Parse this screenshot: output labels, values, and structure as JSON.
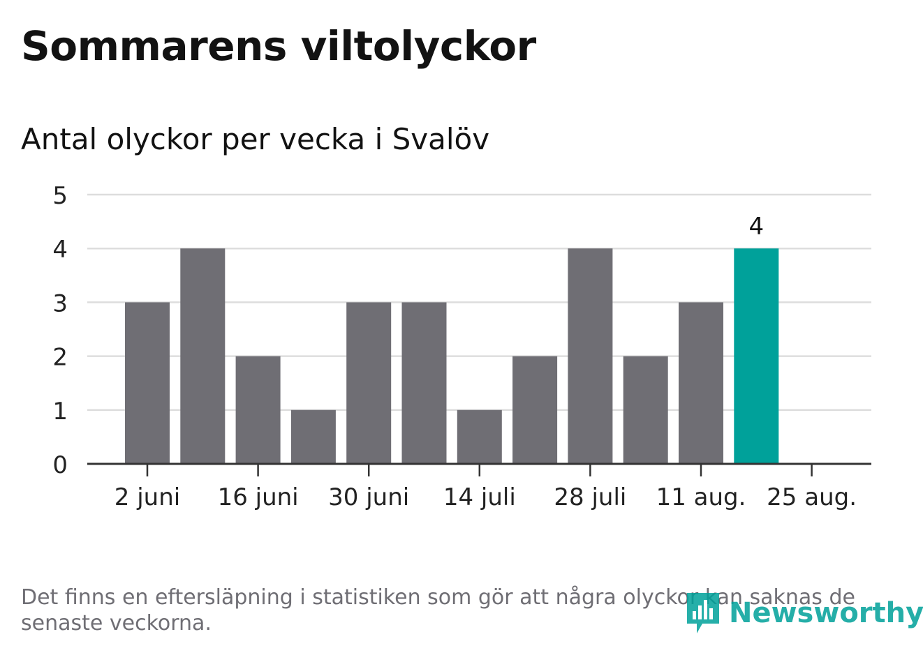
{
  "chart_data": {
    "type": "bar",
    "title": "Sommarens viltolyckor",
    "subtitle": "Antal olyckor per vecka i Svalöv",
    "x": [
      "2024-05-27",
      "2024-06-03",
      "2024-06-10",
      "2024-06-17",
      "2024-06-24",
      "2024-07-01",
      "2024-07-08",
      "2024-07-15",
      "2024-07-22",
      "2024-07-29",
      "2024-08-05",
      "2024-08-12",
      "2024-08-19"
    ],
    "values": [
      0,
      3,
      4,
      2,
      1,
      3,
      3,
      1,
      2,
      4,
      2,
      3,
      4
    ],
    "x_ticks": [
      {
        "at": "2024-06-03",
        "label": "2 juni"
      },
      {
        "at": "2024-06-17",
        "label": "16 juni"
      },
      {
        "at": "2024-07-01",
        "label": "30 juni"
      },
      {
        "at": "2024-07-15",
        "label": "14 juli"
      },
      {
        "at": "2024-07-29",
        "label": "28 juli"
      },
      {
        "at": "2024-08-12",
        "label": "11 aug."
      },
      {
        "at": "2024-08-26",
        "label": "25 aug."
      }
    ],
    "y_ticks": [
      0,
      1,
      2,
      3,
      4,
      5
    ],
    "ylim": [
      0,
      5
    ],
    "grid": true,
    "highlight_last": true,
    "last_value_label": "4",
    "colors": {
      "bar": "#6f6e74",
      "highlight": "#00a19a",
      "grid": "#dddddd",
      "axis": "#333333"
    }
  },
  "footnote": "Det finns en eftersläpning i statistiken som gör att några olyckor kan saknas de senaste veckorna.",
  "logo": {
    "text": "Newsworthy",
    "icon": "bar-chart-speech-bubble-icon"
  }
}
